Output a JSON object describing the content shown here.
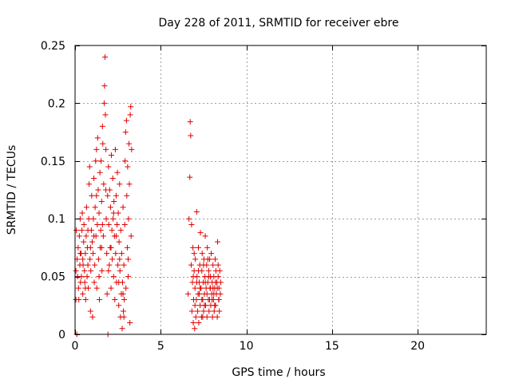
{
  "chart_data": {
    "type": "scatter",
    "title": "Day 228 of 2011, SRMTID for receiver ebre",
    "xlabel": "GPS time / hours",
    "ylabel": "SRMTID / TECUs",
    "xlim": [
      0,
      24
    ],
    "ylim": [
      0,
      0.25
    ],
    "xticks": [
      0,
      5,
      10,
      15,
      20
    ],
    "xtick_labels": [
      "0",
      "5",
      "10",
      "15",
      "20"
    ],
    "yticks": [
      0,
      0.05,
      0.1,
      0.15,
      0.2,
      0.25
    ],
    "ytick_labels": [
      "0",
      "0.05",
      "0.1",
      "0.15",
      "0.2",
      "0.25"
    ],
    "grid": true,
    "marker": "+",
    "colors": {
      "points": "#e00000",
      "grid": "#a0a0a0",
      "axis": "#000000"
    },
    "series": [
      {
        "name": "SRMTID",
        "points": [
          [
            0.05,
            0.03
          ],
          [
            0.05,
            0.055
          ],
          [
            0.07,
            0.09
          ],
          [
            0.1,
            0.0
          ],
          [
            0.12,
            0.065
          ],
          [
            0.15,
            0.05
          ],
          [
            0.18,
            0.075
          ],
          [
            0.2,
            0.04
          ],
          [
            0.22,
            0.03
          ],
          [
            0.25,
            0.085
          ],
          [
            0.28,
            0.06
          ],
          [
            0.3,
            0.1
          ],
          [
            0.32,
            0.045
          ],
          [
            0.35,
            0.07
          ],
          [
            0.37,
            0.05
          ],
          [
            0.4,
            0.09
          ],
          [
            0.42,
            0.105
          ],
          [
            0.45,
            0.035
          ],
          [
            0.47,
            0.06
          ],
          [
            0.5,
            0.08
          ],
          [
            0.52,
            0.095
          ],
          [
            0.55,
            0.055
          ],
          [
            0.57,
            0.045
          ],
          [
            0.6,
            0.07
          ],
          [
            0.62,
            0.03
          ],
          [
            0.65,
            0.085
          ],
          [
            0.67,
            0.11
          ],
          [
            0.7,
            0.05
          ],
          [
            0.72,
            0.075
          ],
          [
            0.75,
            0.06
          ],
          [
            0.77,
            0.04
          ],
          [
            0.8,
            0.1
          ],
          [
            0.82,
            0.13
          ],
          [
            0.85,
            0.145
          ],
          [
            0.87,
            0.065
          ],
          [
            0.9,
            0.02
          ],
          [
            0.92,
            0.055
          ],
          [
            0.95,
            0.09
          ],
          [
            0.97,
            0.12
          ],
          [
            1.0,
            0.08
          ],
          [
            1.02,
            0.015
          ],
          [
            1.05,
            0.07
          ],
          [
            1.07,
            0.1
          ],
          [
            1.1,
            0.135
          ],
          [
            1.12,
            0.045
          ],
          [
            1.15,
            0.06
          ],
          [
            1.17,
            0.11
          ],
          [
            1.2,
            0.15
          ],
          [
            1.22,
            0.085
          ],
          [
            1.25,
            0.16
          ],
          [
            1.27,
            0.04
          ],
          [
            1.3,
            0.095
          ],
          [
            1.32,
            0.17
          ],
          [
            1.35,
            0.125
          ],
          [
            1.37,
            0.065
          ],
          [
            1.4,
            0.105
          ],
          [
            1.42,
            0.03
          ],
          [
            1.45,
            0.14
          ],
          [
            1.47,
            0.075
          ],
          [
            1.5,
            0.09
          ],
          [
            1.52,
            0.15
          ],
          [
            1.55,
            0.115
          ],
          [
            1.57,
            0.055
          ],
          [
            1.6,
            0.18
          ],
          [
            1.62,
            0.165
          ],
          [
            1.65,
            0.085
          ],
          [
            1.67,
            0.13
          ],
          [
            1.7,
            0.2
          ],
          [
            1.72,
            0.215
          ],
          [
            1.75,
            0.24
          ],
          [
            1.77,
            0.19
          ],
          [
            1.8,
            0.16
          ],
          [
            1.82,
            0.1
          ],
          [
            1.85,
            0.07
          ],
          [
            1.87,
            0.035
          ],
          [
            1.9,
            0.12
          ],
          [
            1.92,
            0.0
          ],
          [
            1.95,
            0.145
          ],
          [
            1.97,
            0.095
          ],
          [
            2.0,
            0.06
          ],
          [
            2.02,
            0.125
          ],
          [
            2.05,
            0.075
          ],
          [
            2.07,
            0.11
          ],
          [
            2.1,
            0.04
          ],
          [
            2.12,
            0.155
          ],
          [
            2.15,
            0.09
          ],
          [
            2.17,
            0.065
          ],
          [
            2.2,
            0.135
          ],
          [
            2.22,
            0.1
          ],
          [
            2.25,
            0.05
          ],
          [
            2.27,
            0.115
          ],
          [
            2.3,
            0.085
          ],
          [
            2.32,
            0.03
          ],
          [
            2.35,
            0.16
          ],
          [
            2.37,
            0.07
          ],
          [
            2.4,
            0.12
          ],
          [
            2.42,
            0.045
          ],
          [
            2.45,
            0.095
          ],
          [
            2.47,
            0.14
          ],
          [
            2.5,
            0.06
          ],
          [
            2.52,
            0.105
          ],
          [
            2.55,
            0.025
          ],
          [
            2.57,
            0.08
          ],
          [
            2.6,
            0.13
          ],
          [
            2.62,
            0.055
          ],
          [
            2.65,
            0.015
          ],
          [
            2.67,
            0.09
          ],
          [
            2.7,
            0.035
          ],
          [
            2.72,
            0.07
          ],
          [
            2.75,
            0.005
          ],
          [
            2.77,
            0.045
          ],
          [
            2.8,
            0.11
          ],
          [
            2.82,
            0.02
          ],
          [
            2.85,
            0.06
          ],
          [
            2.87,
            0.03
          ],
          [
            2.9,
            0.095
          ],
          [
            2.92,
            0.15
          ],
          [
            2.95,
            0.175
          ],
          [
            2.97,
            0.04
          ],
          [
            3.0,
            0.185
          ],
          [
            3.02,
            0.12
          ],
          [
            3.05,
            0.075
          ],
          [
            3.07,
            0.145
          ],
          [
            3.1,
            0.05
          ],
          [
            3.12,
            0.1
          ],
          [
            3.15,
            0.165
          ],
          [
            3.17,
            0.13
          ],
          [
            3.2,
            0.01
          ],
          [
            3.22,
            0.19
          ],
          [
            3.25,
            0.197
          ],
          [
            3.27,
            0.085
          ],
          [
            3.3,
            0.16
          ],
          [
            0.3,
            0.07
          ],
          [
            0.6,
            0.04
          ],
          [
            0.9,
            0.075
          ],
          [
            1.1,
            0.085
          ],
          [
            1.4,
            0.05
          ],
          [
            1.6,
            0.095
          ],
          [
            1.8,
            0.125
          ],
          [
            2.1,
            0.075
          ],
          [
            2.4,
            0.085
          ],
          [
            2.6,
            0.065
          ],
          [
            2.8,
            0.035
          ],
          [
            3.1,
            0.065
          ],
          [
            0.45,
            0.065
          ],
          [
            0.75,
            0.09
          ],
          [
            1.25,
            0.12
          ],
          [
            1.55,
            0.075
          ],
          [
            1.95,
            0.055
          ],
          [
            2.25,
            0.105
          ],
          [
            2.55,
            0.045
          ],
          [
            2.85,
            0.015
          ],
          [
            6.6,
            0.035
          ],
          [
            6.65,
            0.1
          ],
          [
            6.7,
            0.136
          ],
          [
            6.72,
            0.184
          ],
          [
            6.75,
            0.172
          ],
          [
            6.78,
            0.06
          ],
          [
            6.8,
            0.095
          ],
          [
            6.82,
            0.02
          ],
          [
            6.85,
            0.045
          ],
          [
            6.88,
            0.075
          ],
          [
            6.9,
            0.01
          ],
          [
            6.92,
            0.03
          ],
          [
            6.95,
            0.055
          ],
          [
            6.98,
            0.005
          ],
          [
            7.0,
            0.04
          ],
          [
            7.02,
            0.065
          ],
          [
            7.05,
            0.015
          ],
          [
            7.08,
            0.03
          ],
          [
            7.1,
            0.106
          ],
          [
            7.12,
            0.05
          ],
          [
            7.15,
            0.02
          ],
          [
            7.18,
            0.035
          ],
          [
            7.2,
            0.075
          ],
          [
            7.22,
            0.01
          ],
          [
            7.25,
            0.045
          ],
          [
            7.28,
            0.06
          ],
          [
            7.3,
            0.025
          ],
          [
            7.32,
            0.088
          ],
          [
            7.35,
            0.04
          ],
          [
            7.38,
            0.015
          ],
          [
            7.4,
            0.055
          ],
          [
            7.42,
            0.07
          ],
          [
            7.45,
            0.03
          ],
          [
            7.48,
            0.045
          ],
          [
            7.5,
            0.02
          ],
          [
            7.52,
            0.065
          ],
          [
            7.55,
            0.035
          ],
          [
            7.58,
            0.05
          ],
          [
            7.6,
            0.085
          ],
          [
            7.62,
            0.025
          ],
          [
            7.65,
            0.04
          ],
          [
            7.68,
            0.06
          ],
          [
            7.7,
            0.015
          ],
          [
            7.72,
            0.075
          ],
          [
            7.75,
            0.045
          ],
          [
            7.78,
            0.03
          ],
          [
            7.8,
            0.055
          ],
          [
            7.82,
            0.02
          ],
          [
            7.85,
            0.065
          ],
          [
            7.88,
            0.04
          ],
          [
            7.9,
            0.05
          ],
          [
            7.92,
            0.025
          ],
          [
            7.95,
            0.07
          ],
          [
            7.98,
            0.035
          ],
          [
            8.0,
            0.045
          ],
          [
            8.02,
            0.015
          ],
          [
            8.05,
            0.06
          ],
          [
            8.08,
            0.03
          ],
          [
            8.1,
            0.05
          ],
          [
            8.12,
            0.02
          ],
          [
            8.15,
            0.04
          ],
          [
            8.18,
            0.065
          ],
          [
            8.2,
            0.025
          ],
          [
            8.22,
            0.055
          ],
          [
            8.25,
            0.035
          ],
          [
            8.28,
            0.045
          ],
          [
            8.3,
            0.015
          ],
          [
            8.32,
            0.08
          ],
          [
            8.35,
            0.05
          ],
          [
            8.38,
            0.03
          ],
          [
            8.4,
            0.04
          ],
          [
            8.42,
            0.02
          ],
          [
            8.45,
            0.055
          ],
          [
            8.48,
            0.035
          ],
          [
            8.5,
            0.045
          ],
          [
            6.9,
            0.05
          ],
          [
            7.0,
            0.025
          ],
          [
            7.1,
            0.045
          ],
          [
            7.2,
            0.055
          ],
          [
            7.3,
            0.04
          ],
          [
            7.4,
            0.03
          ],
          [
            7.5,
            0.06
          ],
          [
            7.6,
            0.045
          ],
          [
            7.7,
            0.035
          ],
          [
            7.8,
            0.05
          ],
          [
            7.9,
            0.04
          ],
          [
            8.0,
            0.03
          ],
          [
            8.1,
            0.035
          ],
          [
            8.2,
            0.045
          ],
          [
            8.3,
            0.04
          ],
          [
            8.4,
            0.03
          ],
          [
            6.95,
            0.07
          ],
          [
            7.25,
            0.035
          ],
          [
            7.55,
            0.025
          ],
          [
            7.85,
            0.03
          ],
          [
            8.15,
            0.025
          ],
          [
            8.35,
            0.06
          ],
          [
            7.45,
            0.015
          ],
          [
            7.75,
            0.065
          ],
          [
            8.05,
            0.04
          ]
        ]
      }
    ]
  }
}
